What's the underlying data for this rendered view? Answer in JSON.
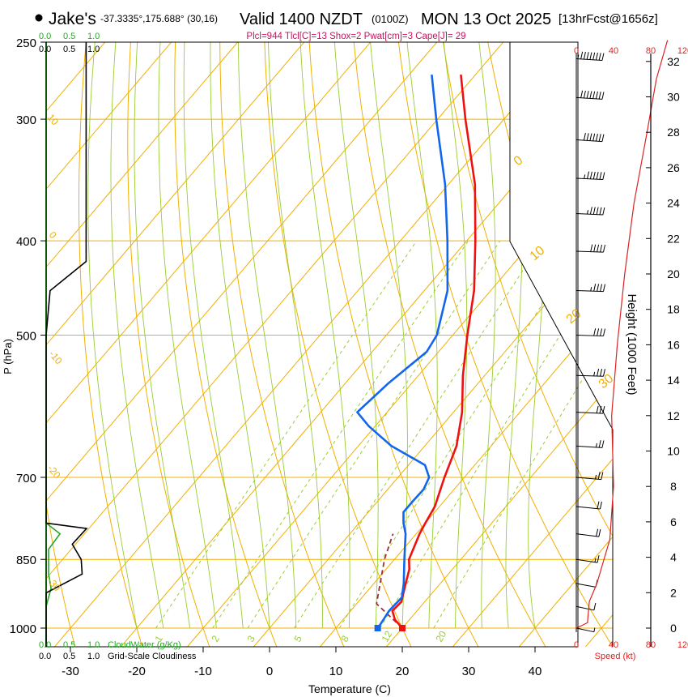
{
  "header": {
    "site": "Jake's",
    "coords": "-37.3335°,175.688° (30,16)",
    "valid": "Valid 1400 NZDT",
    "utc": "(0100Z)",
    "date": "MON 13 Oct 2025",
    "forecast": "[13hrFcst@1656z]",
    "indices": "Plcl=944 Tlcl[C]=13 Shox=2 Pwat[cm]=3 Cape[J]= 29"
  },
  "colors": {
    "isotherm": "#f0b000",
    "dry_adiabat": "#f0b000",
    "moist_adiabat": "#9acd32",
    "mixing_ratio": "#9acd32",
    "temperature": "#ee1111",
    "dewpoint": "#1166ee",
    "parcel": "#993333",
    "cloudwater": "#22aa22",
    "cloudiness": "#000000",
    "speed": "#dd2222"
  },
  "labels": {
    "xaxis_title": "Temperature (C)",
    "yaxis_title": "P (hPa)",
    "height_title": "Height (1000 Feet)",
    "speed_title": "Speed (kt)",
    "cloudwater_label": "CloudWater (g/Kg)",
    "cloudiness_label": "Grid-Scale Cloudiness",
    "cw_ticks": [
      "0.0",
      "0.5",
      "1.0"
    ],
    "cl_ticks": [
      "0.0",
      "0.5",
      "1.0"
    ],
    "speed_ticks": [
      "0",
      "40",
      "80",
      "120"
    ]
  },
  "chart_data": {
    "type": "line",
    "title": "Skew-T log-P sounding",
    "xlabel": "Temperature (C)",
    "ylabel": "P (hPa)",
    "pressure_ticks": [
      250,
      300,
      400,
      500,
      700,
      850,
      1000
    ],
    "temp_ticks": [
      -30,
      -20,
      -10,
      0,
      10,
      20,
      30,
      40
    ],
    "height_ticks": [
      0,
      2,
      4,
      6,
      8,
      10,
      12,
      14,
      16,
      18,
      20,
      22,
      24,
      26,
      28,
      30,
      32
    ],
    "isotherm_labels": [
      "0",
      "10",
      "20",
      "30"
    ],
    "dry_adiabat_labels": [
      "10",
      "0",
      "-10",
      "-20",
      "-30"
    ],
    "mixing_ratio_labels": [
      "1",
      "2",
      "3",
      "5",
      "8",
      "12",
      "20"
    ],
    "series": [
      {
        "name": "Temperature",
        "points": [
          {
            "p": 1000,
            "t": 20.0
          },
          {
            "p": 980,
            "t": 17.8
          },
          {
            "p": 960,
            "t": 16.3
          },
          {
            "p": 940,
            "t": 16.5
          },
          {
            "p": 900,
            "t": 14.8
          },
          {
            "p": 870,
            "t": 13.5
          },
          {
            "p": 850,
            "t": 12.2
          },
          {
            "p": 800,
            "t": 10.5
          },
          {
            "p": 780,
            "t": 10.0
          },
          {
            "p": 750,
            "t": 9.3
          },
          {
            "p": 700,
            "t": 7.0
          },
          {
            "p": 650,
            "t": 4.8
          },
          {
            "p": 600,
            "t": 1.3
          },
          {
            "p": 550,
            "t": -3.3
          },
          {
            "p": 500,
            "t": -7.8
          },
          {
            "p": 450,
            "t": -12.5
          },
          {
            "p": 400,
            "t": -18.7
          },
          {
            "p": 350,
            "t": -26.0
          },
          {
            "p": 300,
            "t": -35.8
          },
          {
            "p": 270,
            "t": -42.2
          }
        ]
      },
      {
        "name": "Dewpoint",
        "points": [
          {
            "p": 1000,
            "t": 16.3
          },
          {
            "p": 990,
            "t": 16.2
          },
          {
            "p": 960,
            "t": 15.8
          },
          {
            "p": 930,
            "t": 16.0
          },
          {
            "p": 900,
            "t": 14.5
          },
          {
            "p": 850,
            "t": 11.5
          },
          {
            "p": 800,
            "t": 8.4
          },
          {
            "p": 780,
            "t": 6.7
          },
          {
            "p": 760,
            "t": 5.3
          },
          {
            "p": 740,
            "t": 5.3
          },
          {
            "p": 720,
            "t": 5.4
          },
          {
            "p": 700,
            "t": 4.7
          },
          {
            "p": 680,
            "t": 2.5
          },
          {
            "p": 650,
            "t": -5.0
          },
          {
            "p": 620,
            "t": -11.0
          },
          {
            "p": 600,
            "t": -14.5
          },
          {
            "p": 560,
            "t": -13.5
          },
          {
            "p": 520,
            "t": -11.8
          },
          {
            "p": 500,
            "t": -12.4
          },
          {
            "p": 450,
            "t": -16.5
          },
          {
            "p": 400,
            "t": -22.9
          },
          {
            "p": 350,
            "t": -30.5
          },
          {
            "p": 300,
            "t": -40.2
          },
          {
            "p": 270,
            "t": -46.6
          }
        ]
      },
      {
        "name": "Parcel",
        "points": [
          {
            "p": 1000,
            "t": 20.0
          },
          {
            "p": 944,
            "t": 13.0
          },
          {
            "p": 850,
            "t": 8.5
          },
          {
            "p": 800,
            "t": 6.5
          }
        ]
      }
    ],
    "cloudiness_profile": [
      {
        "p": 250,
        "v": 0.81
      },
      {
        "p": 400,
        "v": 0.81
      },
      {
        "p": 420,
        "v": 0.81
      },
      {
        "p": 450,
        "v": 0.08
      },
      {
        "p": 500,
        "v": 0.0
      },
      {
        "p": 780,
        "v": 0.0
      },
      {
        "p": 790,
        "v": 0.82
      },
      {
        "p": 820,
        "v": 0.53
      },
      {
        "p": 850,
        "v": 0.71
      },
      {
        "p": 880,
        "v": 0.73
      },
      {
        "p": 920,
        "v": 0.0
      },
      {
        "p": 1050,
        "v": 0.0
      }
    ],
    "cloudwater_profile": [
      {
        "p": 250,
        "v": 0.0
      },
      {
        "p": 780,
        "v": 0.0
      },
      {
        "p": 800,
        "v": 0.28
      },
      {
        "p": 830,
        "v": 0.05
      },
      {
        "p": 880,
        "v": 0.05
      },
      {
        "p": 910,
        "v": 0.1
      },
      {
        "p": 950,
        "v": 0.0
      },
      {
        "p": 1050,
        "v": 0.0
      }
    ],
    "speed_profile": [
      {
        "h": 0.0,
        "v": 0
      },
      {
        "h": 0.3,
        "v": 12
      },
      {
        "h": 1.5,
        "v": 14
      },
      {
        "h": 2.5,
        "v": 22
      },
      {
        "h": 5.0,
        "v": 36
      },
      {
        "h": 8.0,
        "v": 40
      },
      {
        "h": 12.0,
        "v": 38
      },
      {
        "h": 16.0,
        "v": 44
      },
      {
        "h": 20.0,
        "v": 52
      },
      {
        "h": 24.0,
        "v": 62
      },
      {
        "h": 28.0,
        "v": 76
      },
      {
        "h": 31.0,
        "v": 86
      },
      {
        "h": 33.2,
        "v": 98
      }
    ],
    "wind_barbs": [
      {
        "p": 260,
        "dir": 290,
        "spd": 85
      },
      {
        "p": 285,
        "dir": 290,
        "spd": 80
      },
      {
        "p": 315,
        "dir": 290,
        "spd": 70
      },
      {
        "p": 345,
        "dir": 285,
        "spd": 65
      },
      {
        "p": 375,
        "dir": 285,
        "spd": 55
      },
      {
        "p": 410,
        "dir": 280,
        "spd": 50
      },
      {
        "p": 450,
        "dir": 280,
        "spd": 45
      },
      {
        "p": 500,
        "dir": 280,
        "spd": 40
      },
      {
        "p": 550,
        "dir": 280,
        "spd": 35
      },
      {
        "p": 600,
        "dir": 285,
        "spd": 30
      },
      {
        "p": 650,
        "dir": 290,
        "spd": 28
      },
      {
        "p": 700,
        "dir": 295,
        "spd": 25
      },
      {
        "p": 750,
        "dir": 300,
        "spd": 22
      },
      {
        "p": 800,
        "dir": 305,
        "spd": 20
      },
      {
        "p": 850,
        "dir": 310,
        "spd": 18
      },
      {
        "p": 900,
        "dir": 315,
        "spd": 14
      },
      {
        "p": 950,
        "dir": 320,
        "spd": 10
      },
      {
        "p": 1000,
        "dir": 320,
        "spd": 5
      }
    ]
  }
}
